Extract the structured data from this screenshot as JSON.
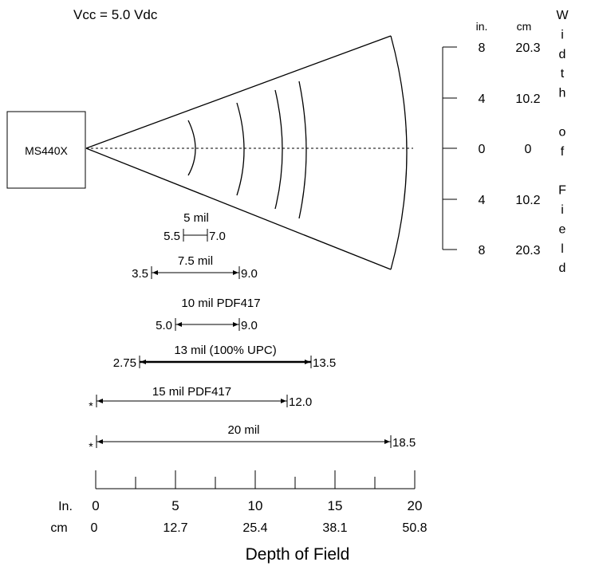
{
  "header": {
    "voltage": "Vcc = 5.0 Vdc"
  },
  "scanner": {
    "label": "MS440X"
  },
  "width_scale": {
    "unit_in": "in.",
    "unit_cm": "cm",
    "rows": [
      {
        "in": "8",
        "cm": "20.3"
      },
      {
        "in": "4",
        "cm": "10.2"
      },
      {
        "in": "0",
        "cm": "0"
      },
      {
        "in": "4",
        "cm": "10.2"
      },
      {
        "in": "8",
        "cm": "20.3"
      }
    ],
    "vertical_label": [
      "W",
      "i",
      "d",
      "t",
      "h",
      "",
      "o",
      "f",
      "",
      "F",
      "i",
      "e",
      "l",
      "d"
    ]
  },
  "ranges": [
    {
      "label": "5 mil",
      "start_label": "5.5",
      "end_label": "7.0",
      "start_in": 5.5,
      "end_in": 7.0
    },
    {
      "label": "7.5 mil",
      "start_label": "3.5",
      "end_label": "9.0",
      "start_in": 3.5,
      "end_in": 9.0
    },
    {
      "label": "10 mil PDF417",
      "start_label": "5.0",
      "end_label": "9.0",
      "start_in": 5.0,
      "end_in": 9.0
    },
    {
      "label": "13 mil (100% UPC)",
      "start_label": "2.75",
      "end_label": "13.5",
      "start_in": 2.75,
      "end_in": 13.5
    },
    {
      "label": "15 mil PDF417",
      "start_label": "*",
      "end_label": "12.0",
      "start_in": 0,
      "end_in": 12.0
    },
    {
      "label": "20 mil",
      "start_label": "*",
      "end_label": "18.5",
      "start_in": 0,
      "end_in": 18.5
    }
  ],
  "depth_axis": {
    "unit_in": "In.",
    "unit_cm": "cm",
    "ticks": [
      {
        "in": "0",
        "cm": "0"
      },
      {
        "in": "5",
        "cm": "12.7"
      },
      {
        "in": "10",
        "cm": "25.4"
      },
      {
        "in": "15",
        "cm": "38.1"
      },
      {
        "in": "20",
        "cm": "50.8"
      }
    ],
    "title": "Depth of Field"
  }
}
